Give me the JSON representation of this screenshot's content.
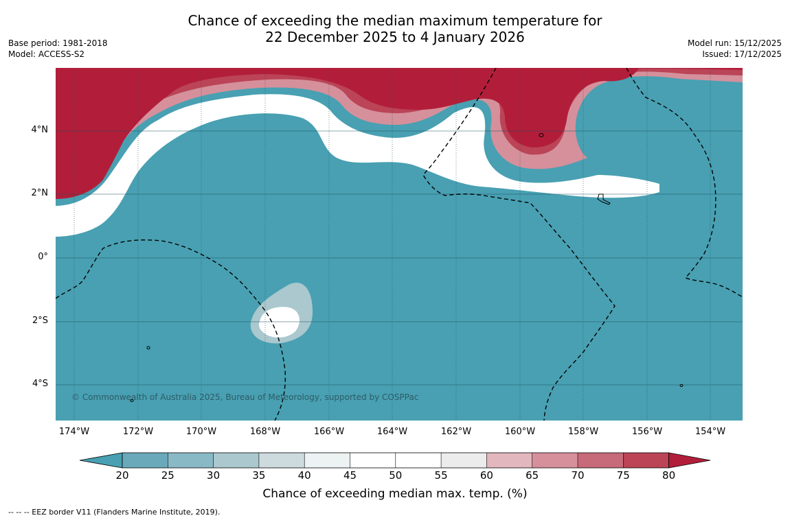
{
  "title": {
    "line1": "Chance of exceeding the median maximum temperature for",
    "line2": "22 December 2025 to 4 January 2026"
  },
  "meta_left": [
    "Base period: 1981-2018",
    "Model: ACCESS-S2"
  ],
  "meta_right": [
    "Model run: 15/12/2025",
    "Issued: 17/12/2025"
  ],
  "map": {
    "lat_labels": [
      "4°N",
      "2°N",
      "0°",
      "2°S",
      "4°S"
    ],
    "lon_labels": [
      "174°W",
      "172°W",
      "170°W",
      "168°W",
      "166°W",
      "164°W",
      "162°W",
      "160°W",
      "158°W",
      "156°W",
      "154°W"
    ],
    "copyright": "© Commonwealth of Australia 2025, Bureau of Meteorology, supported by COSPPac",
    "colors": {
      "ocean_below": "#48a0b2",
      "above_high": "#b21e3a",
      "neutral": "#ffffff"
    }
  },
  "colorbar": {
    "ticks": [
      "20",
      "25",
      "30",
      "35",
      "40",
      "45",
      "50",
      "55",
      "60",
      "65",
      "70",
      "75",
      "80"
    ],
    "colors": [
      "#48a0b2",
      "#6aa9ba",
      "#8ab9c6",
      "#aac8ce",
      "#cddbdf",
      "#edf2f3",
      "#ffffff",
      "#ffffff",
      "#ececec",
      "#e2b7be",
      "#d5909b",
      "#c76a79",
      "#bb4457",
      "#b21e3a"
    ],
    "label": "Chance of exceeding median max. temp. (%)"
  },
  "footnote": "--  --  -- EEZ border V11 (Flanders Marine Institute, 2019)."
}
